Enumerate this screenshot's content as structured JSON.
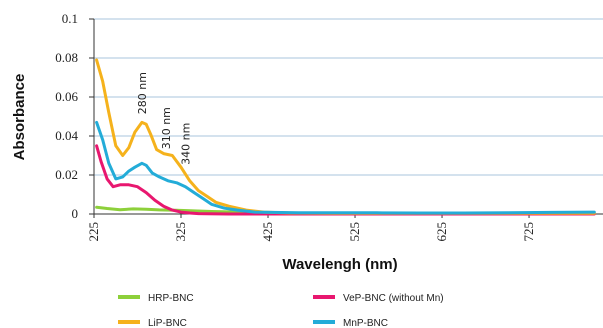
{
  "chart_data": {
    "type": "line",
    "title": "",
    "xlabel": "Wavelengh (nm)",
    "ylabel": "Absorbance",
    "xlim": [
      225,
      810
    ],
    "ylim": [
      0,
      0.1
    ],
    "x_ticks": [
      "225",
      "325",
      "425",
      "525",
      "625",
      "725"
    ],
    "y_ticks": [
      "0",
      "0.02",
      "0.04",
      "0.06",
      "0.08",
      "0.1"
    ],
    "grid": "horizontal",
    "legend_position": "bottom",
    "annotations": [
      {
        "text": "280 nm",
        "x": 280,
        "y": 0.062
      },
      {
        "text": "310 nm",
        "x": 308,
        "y": 0.044
      },
      {
        "text": "340 nm",
        "x": 330,
        "y": 0.036
      }
    ],
    "series": [
      {
        "name": "HRP-BNC",
        "color": "#8dd03a",
        "x": [
          228,
          240,
          255,
          270,
          285,
          300,
          320,
          340,
          360,
          380,
          400,
          420,
          450,
          500,
          550,
          600,
          650,
          700,
          750,
          800
        ],
        "y": [
          0.0035,
          0.0028,
          0.0022,
          0.0026,
          0.0024,
          0.0021,
          0.0019,
          0.0016,
          0.0013,
          0.0011,
          0.0008,
          0.0006,
          0.0004,
          0.0003,
          0.0003,
          0.0003,
          0.0003,
          0.0003,
          0.0003,
          0.0003
        ]
      },
      {
        "name": "VeP-BNC (without Mn)",
        "color": "#e8176f",
        "x": [
          228,
          233,
          240,
          247,
          255,
          265,
          275,
          285,
          295,
          305,
          315,
          325,
          335,
          345,
          355,
          380,
          420,
          500,
          600,
          700,
          800
        ],
        "y": [
          0.035,
          0.027,
          0.018,
          0.014,
          0.015,
          0.015,
          0.014,
          0.011,
          0.007,
          0.004,
          0.002,
          0.001,
          0.0005,
          0.0002,
          0.0001,
          0.0,
          0.0,
          0.0,
          0.0,
          0.0,
          0.0
        ]
      },
      {
        "name": "LiP-BNC",
        "color": "#f5b21c",
        "x": [
          228,
          235,
          242,
          250,
          258,
          265,
          272,
          280,
          285,
          290,
          297,
          305,
          315,
          325,
          335,
          345,
          355,
          365,
          380,
          400,
          420,
          450,
          500,
          600,
          700,
          800
        ],
        "y": [
          0.079,
          0.068,
          0.052,
          0.035,
          0.03,
          0.034,
          0.042,
          0.047,
          0.046,
          0.041,
          0.033,
          0.031,
          0.03,
          0.024,
          0.017,
          0.012,
          0.009,
          0.006,
          0.004,
          0.002,
          0.001,
          0.0005,
          0.0004,
          0.0004,
          0.0004,
          0.0004
        ]
      },
      {
        "name": "MnP-BNC",
        "color": "#23acd8",
        "x": [
          228,
          235,
          242,
          250,
          258,
          265,
          272,
          280,
          285,
          292,
          300,
          310,
          320,
          330,
          340,
          350,
          360,
          375,
          390,
          410,
          430,
          460,
          500,
          550,
          600,
          650,
          700,
          750,
          800
        ],
        "y": [
          0.047,
          0.038,
          0.026,
          0.018,
          0.019,
          0.022,
          0.024,
          0.026,
          0.025,
          0.021,
          0.019,
          0.017,
          0.016,
          0.014,
          0.011,
          0.008,
          0.005,
          0.003,
          0.002,
          0.001,
          0.0008,
          0.0006,
          0.0006,
          0.0006,
          0.0005,
          0.0005,
          0.0006,
          0.0008,
          0.001
        ]
      }
    ]
  }
}
